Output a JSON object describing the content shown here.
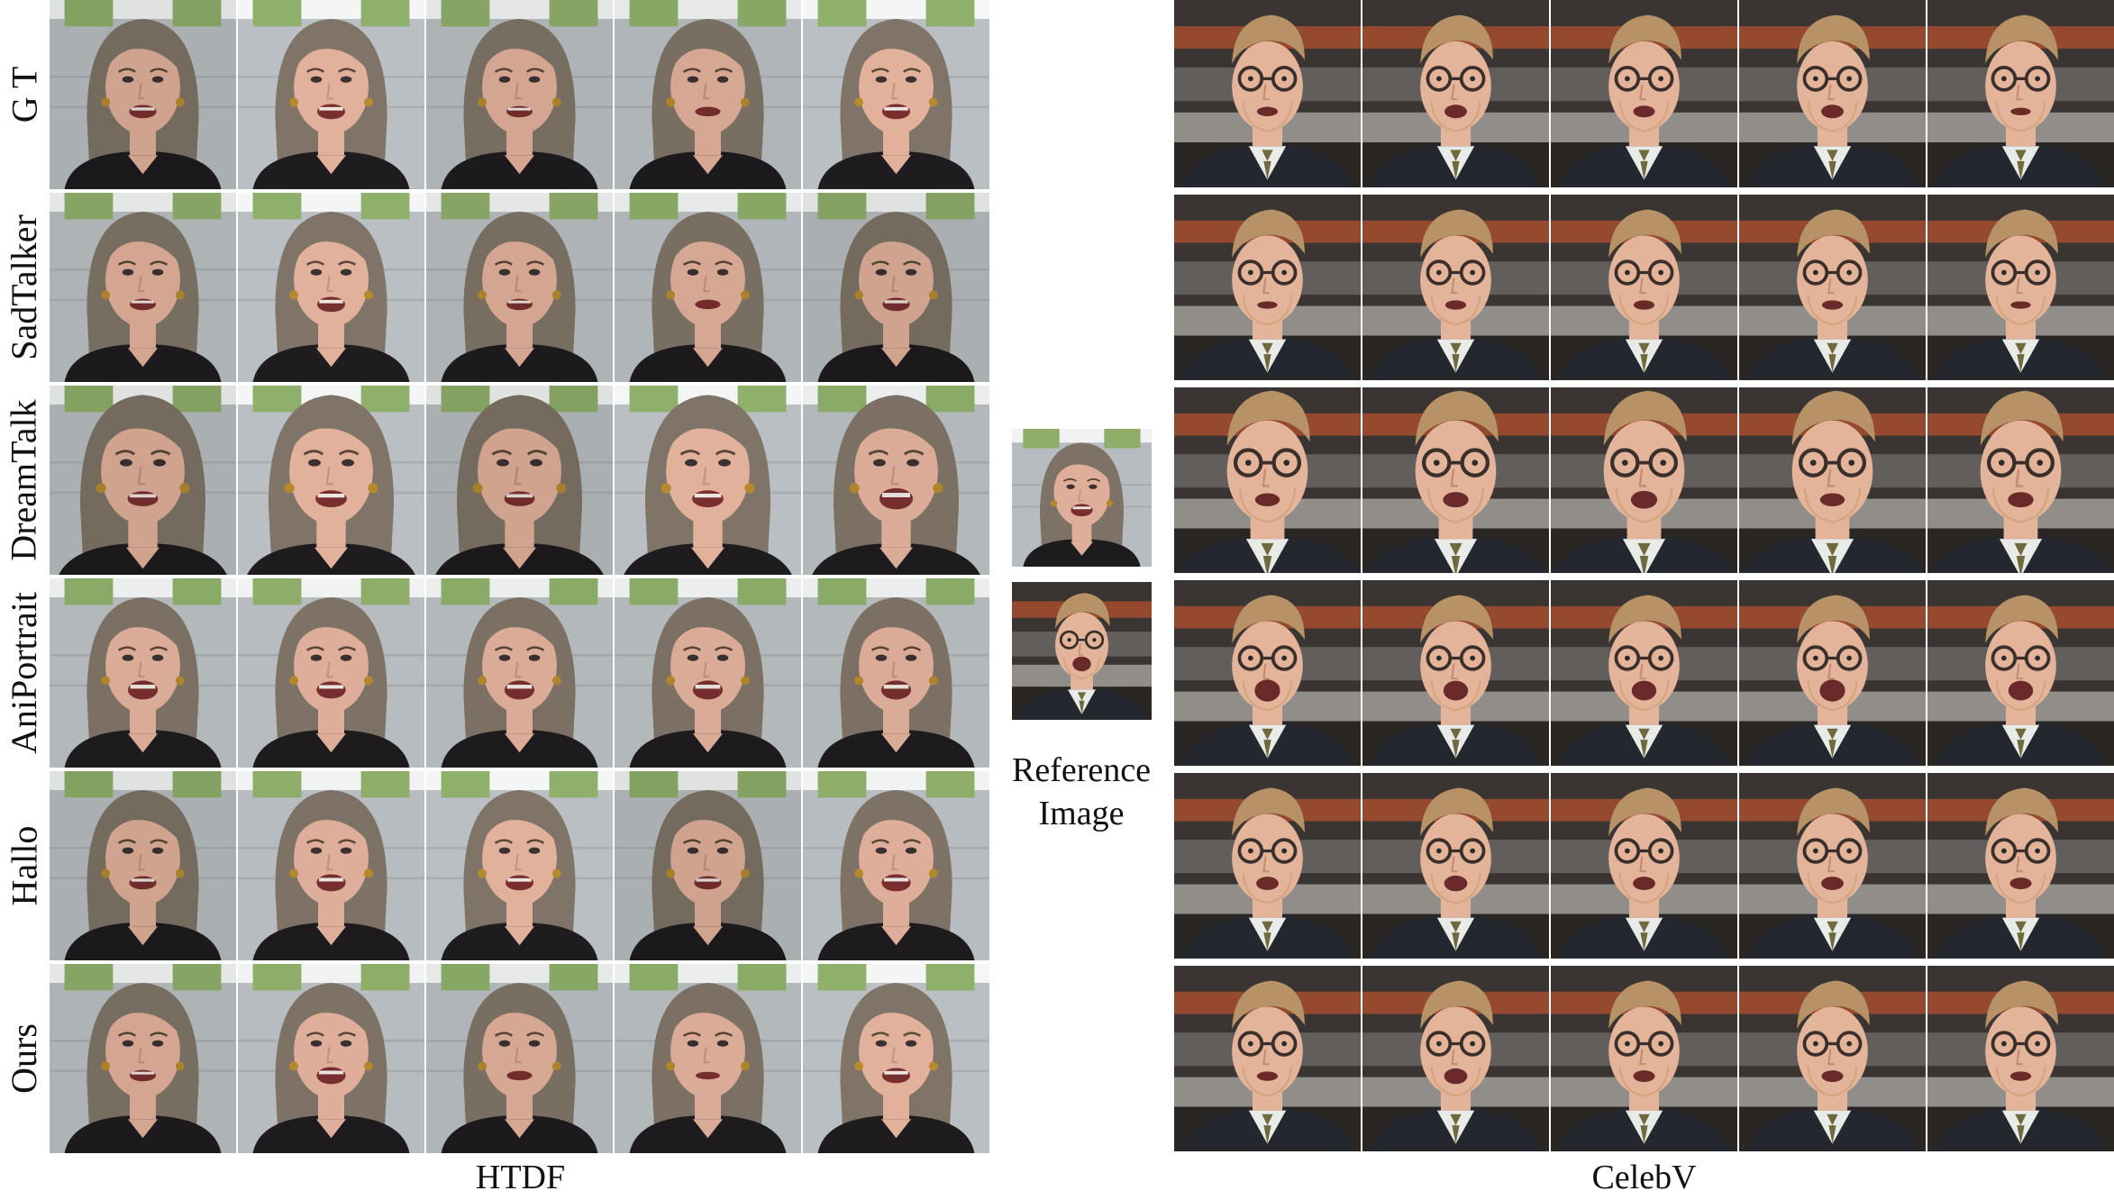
{
  "groups": [
    {
      "caption": "HTDF",
      "subject": "woman"
    },
    {
      "caption": "CelebV",
      "subject": "man"
    }
  ],
  "methods": [
    "G T",
    "SadTalker",
    "DreamTalk",
    "AniPortrait",
    "Hallo",
    "Ours"
  ],
  "frames_per_method": 5,
  "reference": {
    "label_line1": "Reference",
    "label_line2": "Image"
  },
  "mouth_states": {
    "htdf": [
      [
        0.5,
        0.6,
        0.4,
        0.3,
        0.6
      ],
      [
        0.4,
        0.6,
        0.4,
        0.3,
        0.5
      ],
      [
        0.5,
        0.6,
        0.5,
        0.6,
        0.8
      ],
      [
        0.8,
        0.7,
        0.8,
        0.8,
        0.8
      ],
      [
        0.5,
        0.7,
        0.6,
        0.5,
        0.7
      ],
      [
        0.4,
        0.7,
        0.3,
        0.2,
        0.6
      ]
    ],
    "celebv": [
      [
        0.3,
        0.5,
        0.4,
        0.5,
        0.2
      ],
      [
        0.2,
        0.3,
        0.3,
        0.3,
        0.2
      ],
      [
        0.4,
        0.5,
        0.6,
        0.4,
        0.5
      ],
      [
        0.9,
        0.8,
        0.8,
        0.9,
        0.8
      ],
      [
        0.5,
        0.6,
        0.5,
        0.5,
        0.4
      ],
      [
        0.3,
        0.6,
        0.4,
        0.4,
        0.3
      ]
    ]
  },
  "colors": {
    "htdf_background": "#b9bfc2",
    "htdf_window": "#8fb06b",
    "woman_hair": "#7f7467",
    "woman_skin": "#e2b19c",
    "woman_top": "#1e1c1e",
    "celebv_background": "#3a3533",
    "celebv_accent": "#b4502d",
    "man_hair": "#b79266",
    "man_skin": "#e4b49a",
    "man_suit": "#24272d",
    "man_tie": "#6f6a3e",
    "divider": "#ffffff"
  }
}
